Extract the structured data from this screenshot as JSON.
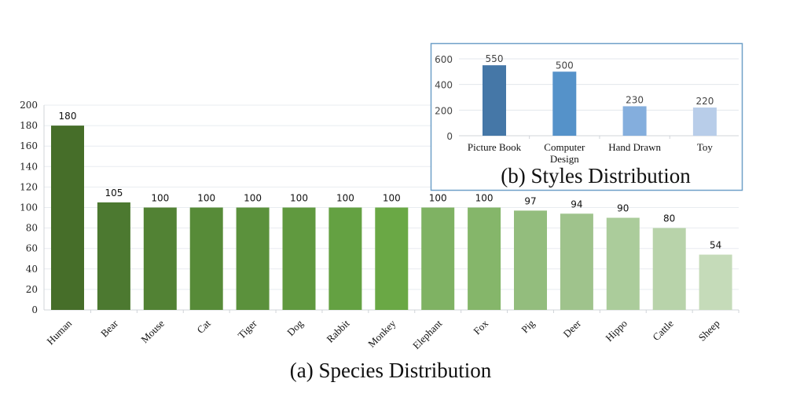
{
  "chart_data": [
    {
      "type": "bar",
      "title": "(a) Species Distribution",
      "xlabel": "",
      "ylabel": "",
      "ylim": [
        0,
        200
      ],
      "yticks": [
        0,
        20,
        40,
        60,
        80,
        100,
        120,
        140,
        160,
        180,
        200
      ],
      "grid": true,
      "categories": [
        "Human",
        "Bear",
        "Mouse",
        "Cat",
        "Tiger",
        "Dog",
        "Rabbit",
        "Monkey",
        "Elephant",
        "Fox",
        "Pig",
        "Deer",
        "Hippo",
        "Cattle",
        "Sheep"
      ],
      "values": [
        180,
        105,
        100,
        100,
        100,
        100,
        100,
        100,
        100,
        100,
        97,
        94,
        90,
        80,
        54
      ],
      "colors": [
        "#466e29",
        "#4c7930",
        "#528234",
        "#578b38",
        "#5b913c",
        "#60993f",
        "#64a142",
        "#6aa845",
        "#7fb263",
        "#85b66a",
        "#93bd7d",
        "#9fc38c",
        "#abcc9b",
        "#b8d3aa",
        "#c5dbb9"
      ]
    },
    {
      "type": "bar",
      "title": "(b) Styles Distribution",
      "xlabel": "",
      "ylabel": "",
      "ylim": [
        0,
        600
      ],
      "yticks": [
        0,
        200,
        400,
        600
      ],
      "grid": true,
      "categories": [
        "Picture Book",
        "Computer Design",
        "Hand Drawn",
        "Toy"
      ],
      "category_lines": [
        [
          "Picture Book"
        ],
        [
          "Computer",
          "Design"
        ],
        [
          "Hand Drawn"
        ],
        [
          "Toy"
        ]
      ],
      "values": [
        550,
        500,
        230,
        220
      ],
      "colors": [
        "#4577a7",
        "#5592c9",
        "#84aedd",
        "#b8cde9"
      ],
      "border_color": "#6fa0c8"
    }
  ]
}
